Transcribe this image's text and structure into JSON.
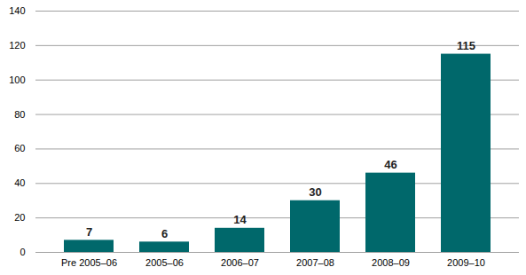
{
  "chart_data": {
    "type": "bar",
    "categories": [
      "Pre 2005–06",
      "2005–06",
      "2006–07",
      "2007–08",
      "2008–09",
      "2009–10"
    ],
    "values": [
      7,
      6,
      14,
      30,
      46,
      115
    ],
    "color": "#00686b",
    "ylim": [
      0,
      140
    ],
    "yticks": [
      0,
      20,
      40,
      60,
      80,
      100,
      120,
      140
    ],
    "grid": true,
    "data_labels": true
  }
}
